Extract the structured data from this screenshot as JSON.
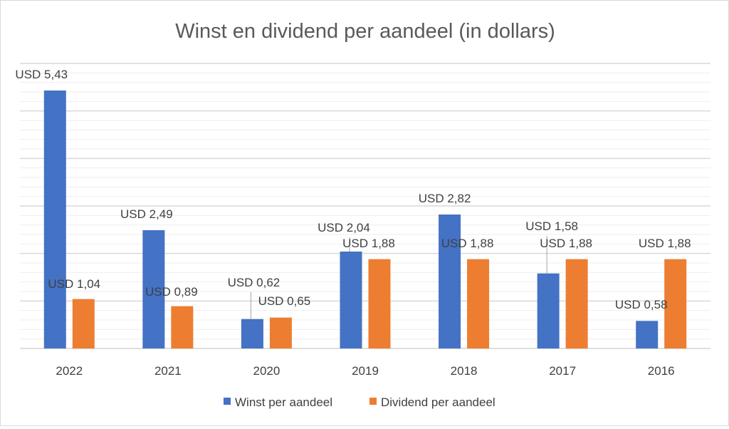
{
  "chart_data": {
    "type": "bar",
    "title": "Winst en dividend per aandeel (in dollars)",
    "categories": [
      "2022",
      "2021",
      "2020",
      "2019",
      "2018",
      "2017",
      "2016"
    ],
    "series": [
      {
        "name": "Winst per aandeel",
        "color": "#4472C4",
        "values": [
          5.43,
          2.49,
          0.62,
          2.04,
          2.82,
          1.58,
          0.58
        ],
        "labels": [
          "USD 5,43",
          "USD 2,49",
          "USD 0,62",
          "USD 2,04",
          "USD 2,82",
          "USD 1,58",
          "USD 0,58"
        ]
      },
      {
        "name": "Dividend per aandeel",
        "color": "#ED7D31",
        "values": [
          1.04,
          0.89,
          0.65,
          1.88,
          1.88,
          1.88,
          1.88
        ],
        "labels": [
          "USD 1,04",
          "USD 0,89",
          "USD 0,65",
          "USD 1,88",
          "USD 1,88",
          "USD 1,88",
          "USD 1,88"
        ]
      }
    ],
    "ylim": [
      0,
      6
    ],
    "y_axis_visible": false,
    "grid": "major and minor horizontal",
    "legend": "bottom"
  }
}
